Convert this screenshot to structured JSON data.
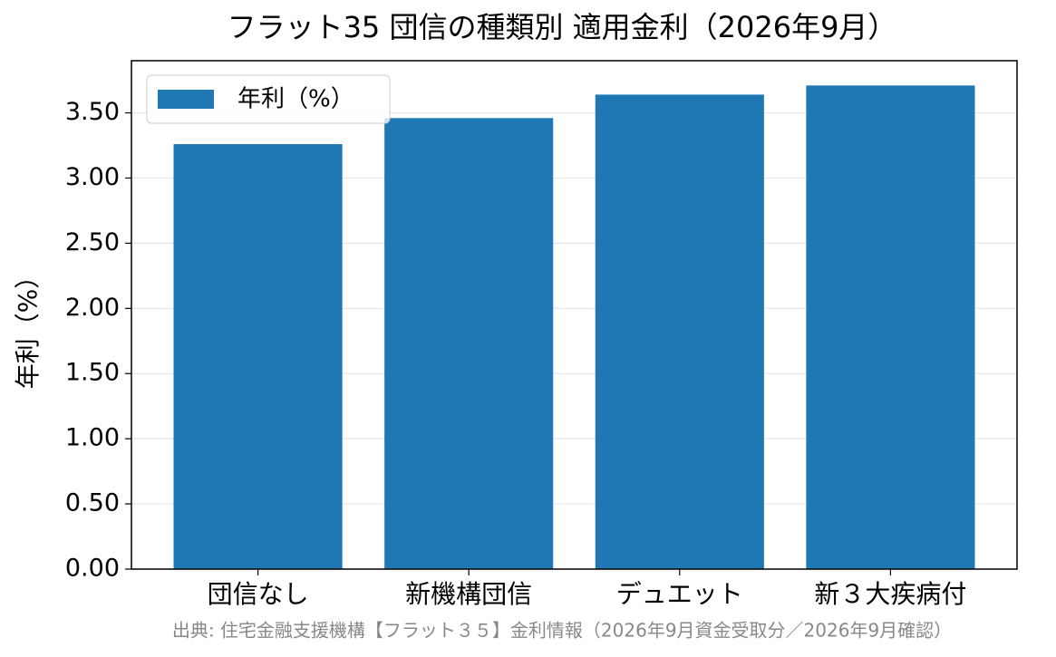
{
  "chart_data": {
    "type": "bar",
    "title": "フラット35 団信の種類別 適用金利（2026年9月）",
    "ylabel": "年利（%）",
    "source": "出典: 住宅金融支援機構【フラット３５】金利情報（2026年9月資金受取分／2026年9月確認）",
    "categories": [
      "団信なし",
      "新機構団信",
      "デュエット",
      "新３大疾病付"
    ],
    "series": [
      {
        "name": "年利（%）",
        "color": "#1f77b4",
        "values": [
          3.26,
          3.46,
          3.64,
          3.71
        ]
      }
    ],
    "ylim": [
      0,
      3.9
    ],
    "yticks": [
      {
        "value": 0,
        "label": "0.00"
      },
      {
        "value": 0.5,
        "label": "0.50"
      },
      {
        "value": 1,
        "label": "1.00"
      },
      {
        "value": 1.5,
        "label": "1.50"
      },
      {
        "value": 2,
        "label": "2.00"
      },
      {
        "value": 2.5,
        "label": "2.50"
      },
      {
        "value": 3,
        "label": "3.00"
      },
      {
        "value": 3.5,
        "label": "3.50"
      }
    ],
    "grid": true,
    "legend": "upper-left"
  }
}
